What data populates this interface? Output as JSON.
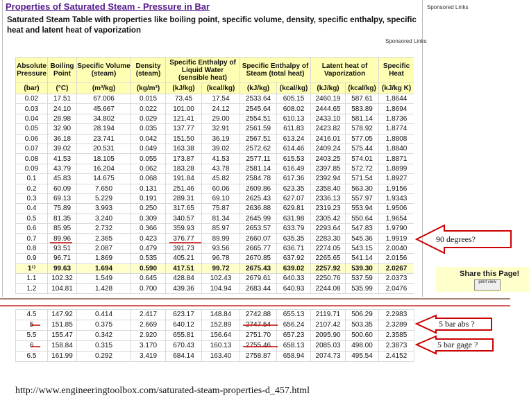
{
  "header": {
    "title": "Properties of Saturated Steam - Pressure in Bar",
    "sponsored_top": "Sponsored Links",
    "subtitle": "Saturated Steam Table with properties like boiling point, specific volume, density, specific enthalpy, specific heat and latent heat of vaporization",
    "sponsored_mid": "Sponsored Links"
  },
  "table": {
    "headers": [
      "Absolute Pressure",
      "Boiling Point",
      "Specific Volume (steam)",
      "Density (steam)",
      "Specific Enthalpy of Liquid Water (sensible heat)",
      "Specific Enthalpy of Steam (total heat)",
      "Latent heat of Vaporization",
      "Specific Heat"
    ],
    "units": [
      "(bar)",
      "(°C)",
      "(m³/kg)",
      "(kg/m³)",
      "(kJ/kg)",
      "(kcal/kg)",
      "(kJ/kg)",
      "(kcal/kg)",
      "(kJ/kg)",
      "(kcal/kg)",
      "(kJ/kg K)"
    ],
    "rows": [
      [
        "0.02",
        "17.51",
        "67.006",
        "0.015",
        "73.45",
        "17.54",
        "2533.64",
        "605.15",
        "2460.19",
        "587.61",
        "1.8644"
      ],
      [
        "0.03",
        "24.10",
        "45.667",
        "0.022",
        "101.00",
        "24.12",
        "2545.64",
        "608.02",
        "2444.65",
        "583.89",
        "1.8694"
      ],
      [
        "0.04",
        "28.98",
        "34.802",
        "0.029",
        "121.41",
        "29.00",
        "2554.51",
        "610.13",
        "2433.10",
        "581.14",
        "1.8736"
      ],
      [
        "0.05",
        "32.90",
        "28.194",
        "0.035",
        "137.77",
        "32.91",
        "2561.59",
        "611.83",
        "2423.82",
        "578.92",
        "1.8774"
      ],
      [
        "0.06",
        "36.18",
        "23.741",
        "0.042",
        "151.50",
        "36.19",
        "2567.51",
        "613.24",
        "2416.01",
        "577.05",
        "1.8808"
      ],
      [
        "0.07",
        "39.02",
        "20.531",
        "0.049",
        "163.38",
        "39.02",
        "2572.62",
        "614.46",
        "2409.24",
        "575.44",
        "1.8840"
      ],
      [
        "0.08",
        "41.53",
        "18.105",
        "0.055",
        "173.87",
        "41.53",
        "2577.11",
        "615.53",
        "2403.25",
        "574.01",
        "1.8871"
      ],
      [
        "0.09",
        "43.79",
        "16.204",
        "0.062",
        "183.28",
        "43.78",
        "2581.14",
        "616.49",
        "2397.85",
        "572.72",
        "1.8899"
      ],
      [
        "0.1",
        "45.83",
        "14.675",
        "0.068",
        "191.84",
        "45.82",
        "2584.78",
        "617.36",
        "2392.94",
        "571.54",
        "1.8927"
      ],
      [
        "0.2",
        "60.09",
        "7.650",
        "0.131",
        "251.46",
        "60.06",
        "2609.86",
        "623.35",
        "2358.40",
        "563.30",
        "1.9156"
      ],
      [
        "0.3",
        "69.13",
        "5.229",
        "0.191",
        "289.31",
        "69.10",
        "2625.43",
        "627.07",
        "2336.13",
        "557.97",
        "1.9343"
      ],
      [
        "0.4",
        "75.89",
        "3.993",
        "0.250",
        "317.65",
        "75.87",
        "2636.88",
        "629.81",
        "2319.23",
        "553.94",
        "1.9506"
      ],
      [
        "0.5",
        "81.35",
        "3.240",
        "0.309",
        "340.57",
        "81.34",
        "2645.99",
        "631.98",
        "2305.42",
        "550.64",
        "1.9654"
      ],
      [
        "0.6",
        "85.95",
        "2.732",
        "0.366",
        "359.93",
        "85.97",
        "2653.57",
        "633.79",
        "2293.64",
        "547.83",
        "1.9790"
      ],
      [
        "0.7",
        "89.96",
        "2.365",
        "0.423",
        "376.77",
        "89.99",
        "2660.07",
        "635.35",
        "2283.30",
        "545.36",
        "1.9919"
      ],
      [
        "0.8",
        "93.51",
        "2.087",
        "0.479",
        "391.73",
        "93.56",
        "2665.77",
        "636.71",
        "2274.05",
        "543.15",
        "2.0040"
      ],
      [
        "0.9",
        "96.71",
        "1.869",
        "0.535",
        "405.21",
        "96.78",
        "2670.85",
        "637.92",
        "2265.65",
        "541.14",
        "2.0156"
      ],
      [
        "1¹⁾",
        "99.63",
        "1.694",
        "0.590",
        "417.51",
        "99.72",
        "2675.43",
        "639.02",
        "2257.92",
        "539.30",
        "2.0267"
      ],
      [
        "1.1",
        "102.32",
        "1.549",
        "0.645",
        "428.84",
        "102.43",
        "2679.61",
        "640.33",
        "2250.76",
        "537.59",
        "2.0373"
      ],
      [
        "1.2",
        "104.81",
        "1.428",
        "0.700",
        "439.36",
        "104.94",
        "2683.44",
        "640.93",
        "2244.08",
        "535.99",
        "2.0476"
      ]
    ]
  },
  "table_lower": {
    "rows": [
      [
        "4.5",
        "147.92",
        "0.414",
        "2.417",
        "623.17",
        "148.84",
        "2742.88",
        "655.13",
        "2119.71",
        "506.29",
        "2.2983"
      ],
      [
        "5",
        "151.85",
        "0.375",
        "2.669",
        "640.12",
        "152.89",
        "2747.54",
        "656.24",
        "2107.42",
        "503.35",
        "2.3289"
      ],
      [
        "5.5",
        "155.47",
        "0.342",
        "2.920",
        "655.81",
        "156.64",
        "2751.70",
        "657.23",
        "2095.90",
        "500.60",
        "2.3585"
      ],
      [
        "6",
        "158.84",
        "0.315",
        "3.170",
        "670.43",
        "160.13",
        "2755.46",
        "658.13",
        "2085.03",
        "498.00",
        "2.3873"
      ],
      [
        "6.5",
        "161.99",
        "0.292",
        "3.419",
        "684.14",
        "163.40",
        "2758.87",
        "658.94",
        "2074.73",
        "495.54",
        "2.4152"
      ]
    ]
  },
  "annotations": [
    "90 degrees?",
    "5 bar abs ?",
    "5 bar gage ?"
  ],
  "share": {
    "title": "Share this Page!",
    "button": "print view"
  },
  "footer": {
    "url": "http://www.engineeringtoolbox.com/saturated-steam-properties-d_457.html"
  }
}
